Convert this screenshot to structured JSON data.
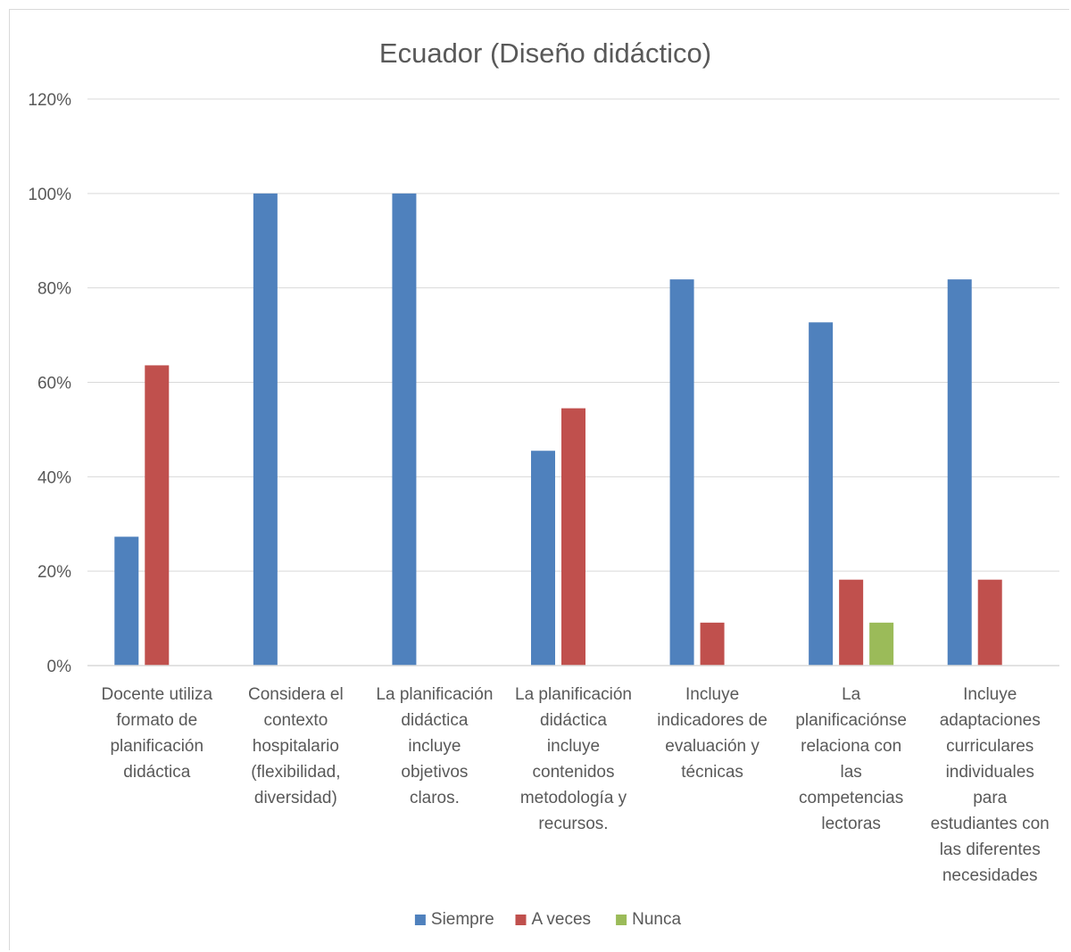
{
  "chart_data": {
    "type": "bar",
    "title": "Ecuador (Diseño didáctico)",
    "xlabel": "",
    "ylabel": "",
    "ylim": [
      0,
      1.2
    ],
    "yticks": [
      0,
      0.2,
      0.4,
      0.6,
      0.8,
      1.0,
      1.2
    ],
    "ytick_labels": [
      "0%",
      "20%",
      "40%",
      "60%",
      "80%",
      "100%",
      "120%"
    ],
    "grid": true,
    "legend_position": "bottom",
    "categories": [
      [
        "Docente utiliza",
        "formato de",
        "planificación",
        "didáctica"
      ],
      [
        "Considera el",
        "contexto",
        "hospitalario",
        "(flexibilidad,",
        "diversidad)"
      ],
      [
        "La planificación",
        "didáctica",
        "incluye",
        "objetivos",
        "claros."
      ],
      [
        "La planificación",
        "didáctica",
        "incluye",
        "contenidos",
        "metodología y",
        "recursos."
      ],
      [
        "Incluye",
        "indicadores de",
        "evaluación y",
        "técnicas"
      ],
      [
        "La",
        "planificaciónse",
        "relaciona con",
        "las",
        "competencias",
        "lectoras"
      ],
      [
        "Incluye",
        "adaptaciones",
        "curriculares",
        "individuales",
        "para",
        "estudiantes con",
        "las diferentes",
        "necesidades"
      ]
    ],
    "series": [
      {
        "name": "Siempre",
        "color": "#4f81bd",
        "values": [
          0.273,
          1.0,
          1.0,
          0.455,
          0.818,
          0.727,
          0.818
        ]
      },
      {
        "name": "A veces",
        "color": "#c0504d",
        "values": [
          0.636,
          0,
          0,
          0.545,
          0.091,
          0.182,
          0.182
        ]
      },
      {
        "name": "Nunca",
        "color": "#9bbb59",
        "values": [
          0,
          0,
          0,
          0,
          0,
          0.091,
          0
        ]
      }
    ]
  }
}
